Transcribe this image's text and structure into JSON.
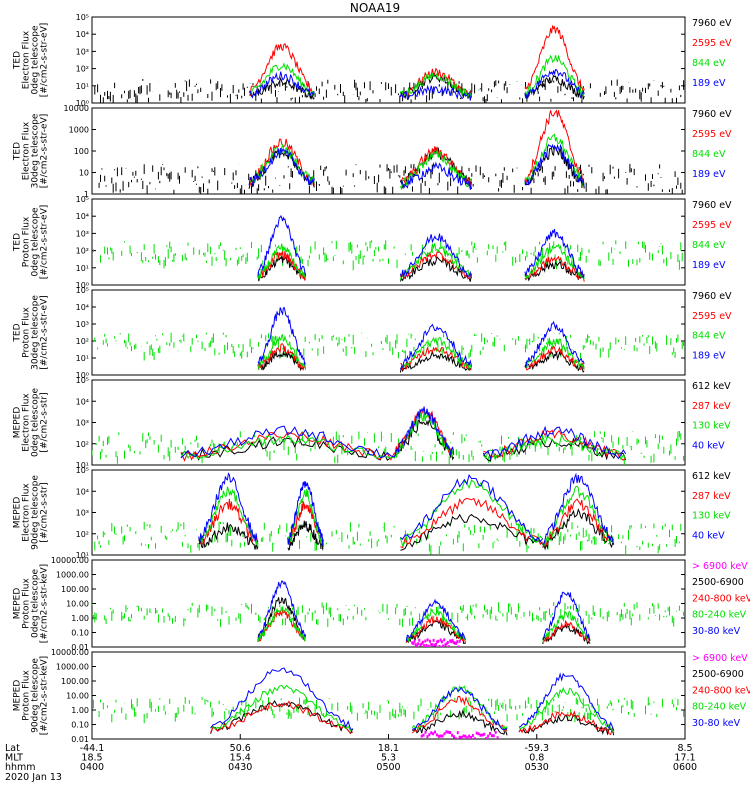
{
  "title": "NOAA19",
  "colors": {
    "black": "#000000",
    "red": "#ff0000",
    "green": "#00e000",
    "blue": "#0000ff",
    "magenta": "#ff00ff"
  },
  "chart_data": [
    {
      "id": "ted-e-0",
      "type": "line",
      "yscale": "log",
      "ylabel": [
        "TED",
        "Electron Flux",
        "0deg telescope",
        "[#/cm2-s-str-eV]"
      ],
      "yticks": [
        "10⁰",
        "10¹",
        "10²",
        "10³",
        "10⁴",
        "10⁵"
      ],
      "ylim_exp": [
        0,
        5
      ],
      "legend": [
        {
          "label": "7960 eV",
          "color": "black"
        },
        {
          "label": "2595 eV",
          "color": "red"
        },
        {
          "label": "844 eV",
          "color": "green"
        },
        {
          "label": "189 eV",
          "color": "blue"
        }
      ],
      "bursts": [
        {
          "center": 0.32,
          "width": 0.055,
          "level": [
            1.2,
            3.3,
            2.2,
            1.6
          ]
        },
        {
          "center": 0.58,
          "width": 0.06,
          "level": [
            1.5,
            1.8,
            1.6,
            0.8
          ]
        },
        {
          "center": 0.78,
          "width": 0.05,
          "level": [
            1.4,
            4.3,
            2.6,
            1.9
          ]
        }
      ],
      "background": 0.8,
      "noise_color": "black"
    },
    {
      "id": "ted-e-30",
      "type": "line",
      "yscale": "log",
      "ylabel": [
        "TED",
        "Electron Flux",
        "30deg telescope",
        "[#/cm2-s-str-eV]"
      ],
      "yticks": [
        "1",
        "10",
        "100",
        "1000",
        "10000"
      ],
      "ylim_exp": [
        0,
        4
      ],
      "legend": [
        {
          "label": "7960 eV",
          "color": "black"
        },
        {
          "label": "2595 eV",
          "color": "red"
        },
        {
          "label": "844 eV",
          "color": "green"
        },
        {
          "label": "189 eV",
          "color": "blue"
        }
      ],
      "bursts": [
        {
          "center": 0.32,
          "width": 0.055,
          "level": [
            1.9,
            2.4,
            2.1,
            1.9
          ]
        },
        {
          "center": 0.58,
          "width": 0.06,
          "level": [
            1.9,
            2.0,
            1.8,
            1.2
          ]
        },
        {
          "center": 0.78,
          "width": 0.05,
          "level": [
            2.0,
            3.8,
            2.6,
            2.2
          ]
        }
      ],
      "background": 0.8,
      "noise_color": "black"
    },
    {
      "id": "ted-p-0",
      "type": "line",
      "yscale": "log",
      "ylabel": [
        "TED",
        "Proton Flux",
        "0deg telescope",
        "[#/cm2-s-str-eV]"
      ],
      "yticks": [
        "10⁰",
        "10¹",
        "10²",
        "10³",
        "10⁴",
        "10⁵"
      ],
      "ylim_exp": [
        0,
        5
      ],
      "legend": [
        {
          "label": "7960 eV",
          "color": "black"
        },
        {
          "label": "2595 eV",
          "color": "red"
        },
        {
          "label": "844 eV",
          "color": "green"
        },
        {
          "label": "189 eV",
          "color": "blue"
        }
      ],
      "bursts": [
        {
          "center": 0.32,
          "width": 0.04,
          "level": [
            1.5,
            1.8,
            2.2,
            3.8
          ]
        },
        {
          "center": 0.58,
          "width": 0.06,
          "level": [
            1.4,
            1.8,
            2.2,
            2.8
          ]
        },
        {
          "center": 0.78,
          "width": 0.05,
          "level": [
            1.2,
            1.5,
            2.2,
            3.0
          ]
        }
      ],
      "background": 2.0,
      "noise_color": "green"
    },
    {
      "id": "ted-p-30",
      "type": "line",
      "yscale": "log",
      "ylabel": [
        "TED",
        "Proton Flux",
        "30deg telescope",
        "[#/cm2-s-str-eV]"
      ],
      "yticks": [
        "10⁰",
        "10¹",
        "10²",
        "10³",
        "10⁴",
        "10⁵"
      ],
      "ylim_exp": [
        0,
        5
      ],
      "legend": [
        {
          "label": "7960 eV",
          "color": "black"
        },
        {
          "label": "2595 eV",
          "color": "red"
        },
        {
          "label": "844 eV",
          "color": "green"
        },
        {
          "label": "189 eV",
          "color": "blue"
        }
      ],
      "bursts": [
        {
          "center": 0.32,
          "width": 0.04,
          "level": [
            1.3,
            1.6,
            2.2,
            3.8
          ]
        },
        {
          "center": 0.58,
          "width": 0.06,
          "level": [
            1.2,
            1.6,
            2.0,
            2.8
          ]
        },
        {
          "center": 0.78,
          "width": 0.05,
          "level": [
            1.2,
            1.5,
            2.0,
            2.9
          ]
        }
      ],
      "background": 1.9,
      "noise_color": "green"
    },
    {
      "id": "meped-e-0",
      "type": "line",
      "yscale": "log",
      "ylabel": [
        "MEPED",
        "Electron Flux",
        "0deg telescope",
        "[#/cm2-s-str]"
      ],
      "yticks": [
        "10¹",
        "10²",
        "10³",
        "10⁴",
        "10⁵"
      ],
      "ylim_exp": [
        1,
        5
      ],
      "legend": [
        {
          "label": "612 keV",
          "color": "black"
        },
        {
          "label": "287 keV",
          "color": "red"
        },
        {
          "label": "130 keV",
          "color": "green"
        },
        {
          "label": "40 keV",
          "color": "blue"
        }
      ],
      "bursts": [
        {
          "center": 0.33,
          "width": 0.18,
          "level": [
            2.1,
            2.4,
            2.2,
            2.6
          ]
        },
        {
          "center": 0.56,
          "width": 0.05,
          "level": [
            3.0,
            3.6,
            3.3,
            3.5
          ]
        },
        {
          "center": 0.78,
          "width": 0.12,
          "level": [
            2.1,
            2.4,
            2.2,
            2.6
          ]
        }
      ],
      "background": 2.0,
      "noise_color": "green"
    },
    {
      "id": "meped-e-90",
      "type": "line",
      "yscale": "log",
      "ylabel": [
        "MEPED",
        "Electron Flux",
        "90deg telescope",
        "[#/cm2-s-str]"
      ],
      "yticks": [
        "10¹",
        "10²",
        "10³",
        "10⁴",
        "10⁵"
      ],
      "ylim_exp": [
        1,
        5
      ],
      "legend": [
        {
          "label": "612 keV",
          "color": "black"
        },
        {
          "label": "287 keV",
          "color": "red"
        },
        {
          "label": "130 keV",
          "color": "green"
        },
        {
          "label": "40 keV",
          "color": "blue"
        }
      ],
      "bursts": [
        {
          "center": 0.23,
          "width": 0.05,
          "level": [
            2.3,
            3.4,
            4.0,
            4.6
          ]
        },
        {
          "center": 0.36,
          "width": 0.03,
          "level": [
            2.4,
            3.4,
            3.9,
            4.4
          ]
        },
        {
          "center": 0.64,
          "width": 0.12,
          "level": [
            2.8,
            3.5,
            4.3,
            4.6
          ]
        },
        {
          "center": 0.82,
          "width": 0.06,
          "level": [
            2.9,
            3.4,
            4.0,
            4.6
          ]
        }
      ],
      "background": 2.0,
      "noise_color": "green"
    },
    {
      "id": "meped-p-0",
      "type": "line",
      "yscale": "log",
      "ylabel": [
        "MEPED",
        "Proton Flux",
        "0deg telescope",
        "[#/cm2-s-str-keV]"
      ],
      "yticks": [
        "0.01",
        "0.10",
        "1.00",
        "10.00",
        "100.00",
        "1000.00",
        "10000.00"
      ],
      "ylim_exp": [
        -2,
        4
      ],
      "legend": [
        {
          "label": "> 6900 keV",
          "color": "magenta"
        },
        {
          "label": "2500-6900",
          "color": "black"
        },
        {
          "label": "240-800 keV",
          "color": "red"
        },
        {
          "label": "80-240 keV",
          "color": "green"
        },
        {
          "label": "30-80 keV",
          "color": "blue"
        }
      ],
      "bursts": [
        {
          "center": 0.32,
          "width": 0.04,
          "level": [
            1.3,
            0.4,
            0.6,
            2.4
          ]
        },
        {
          "center": 0.58,
          "width": 0.05,
          "level": [
            -0.4,
            -0.1,
            0.4,
            1.0
          ]
        },
        {
          "center": 0.8,
          "width": 0.04,
          "level": [
            -0.6,
            -0.4,
            0.3,
            1.8
          ]
        }
      ],
      "background": 0.5,
      "noise_color": "green"
    },
    {
      "id": "meped-p-90",
      "type": "line",
      "yscale": "log",
      "ylabel": [
        "MEPED",
        "Proton Flux",
        "90deg telescope",
        "[#/cm2-s-str-keV]"
      ],
      "yticks": [
        "0.01",
        "0.10",
        "1.00",
        "10.00",
        "100.00",
        "1000.00",
        "10000.00"
      ],
      "ylim_exp": [
        -2,
        4
      ],
      "legend": [
        {
          "label": "> 6900 keV",
          "color": "magenta"
        },
        {
          "label": "2500-6900",
          "color": "black"
        },
        {
          "label": "240-800 keV",
          "color": "red"
        },
        {
          "label": "80-240 keV",
          "color": "green"
        },
        {
          "label": "30-80 keV",
          "color": "blue"
        }
      ],
      "bursts": [
        {
          "center": 0.32,
          "width": 0.12,
          "level": [
            0.5,
            0.4,
            1.5,
            2.8
          ]
        },
        {
          "center": 0.62,
          "width": 0.08,
          "level": [
            -0.3,
            0.7,
            1.5,
            1.4
          ]
        },
        {
          "center": 0.8,
          "width": 0.08,
          "level": [
            -0.5,
            -0.2,
            1.3,
            2.4
          ]
        }
      ],
      "background": 0.3,
      "noise_color": "green"
    }
  ],
  "footer": {
    "row_labels": [
      "Lat",
      "MLT",
      "hhmm"
    ],
    "date": "2020 Jan 13",
    "ticks": [
      {
        "lat": "-44.1",
        "mlt": "18.5",
        "hhmm": "0400"
      },
      {
        "lat": "50.6",
        "mlt": "15.4",
        "hhmm": "0430"
      },
      {
        "lat": "18.1",
        "mlt": "5.3",
        "hhmm": "0500"
      },
      {
        "lat": "-59.3",
        "mlt": "0.8",
        "hhmm": "0530"
      },
      {
        "lat": "8.5",
        "mlt": "17.1",
        "hhmm": "0600"
      }
    ]
  }
}
